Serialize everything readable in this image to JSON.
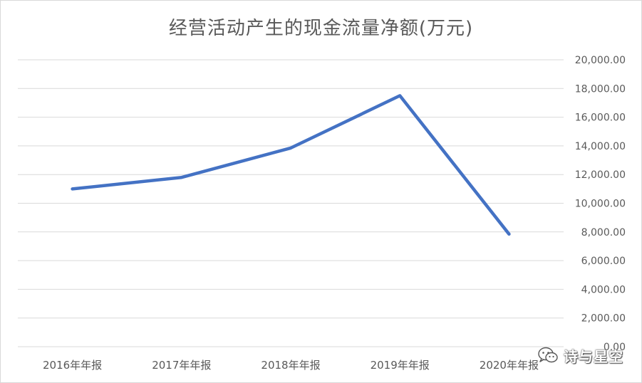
{
  "chart_data": {
    "type": "line",
    "title": "经营活动产生的现金流量净额(万元)",
    "categories": [
      "2016年年报",
      "2017年年报",
      "2018年年报",
      "2019年年报",
      "2020年年报"
    ],
    "series": [
      {
        "values": [
          11000,
          11800,
          13850,
          17500,
          7850
        ],
        "color": "#4472c4"
      }
    ],
    "y_ticks": [
      "0.00",
      "2,000.00",
      "4,000.00",
      "6,000.00",
      "8,000.00",
      "10,000.00",
      "12,000.00",
      "14,000.00",
      "16,000.00",
      "18,000.00",
      "20,000.00"
    ],
    "ylim": [
      0,
      20000
    ],
    "y_axis_position": "right",
    "grid": true,
    "legend": "none",
    "colors": {
      "line": "#4472c4",
      "grid": "#d9d9d9",
      "text": "#595959"
    }
  },
  "watermark": {
    "text": "诗与星空",
    "icon": "wechat-icon"
  }
}
